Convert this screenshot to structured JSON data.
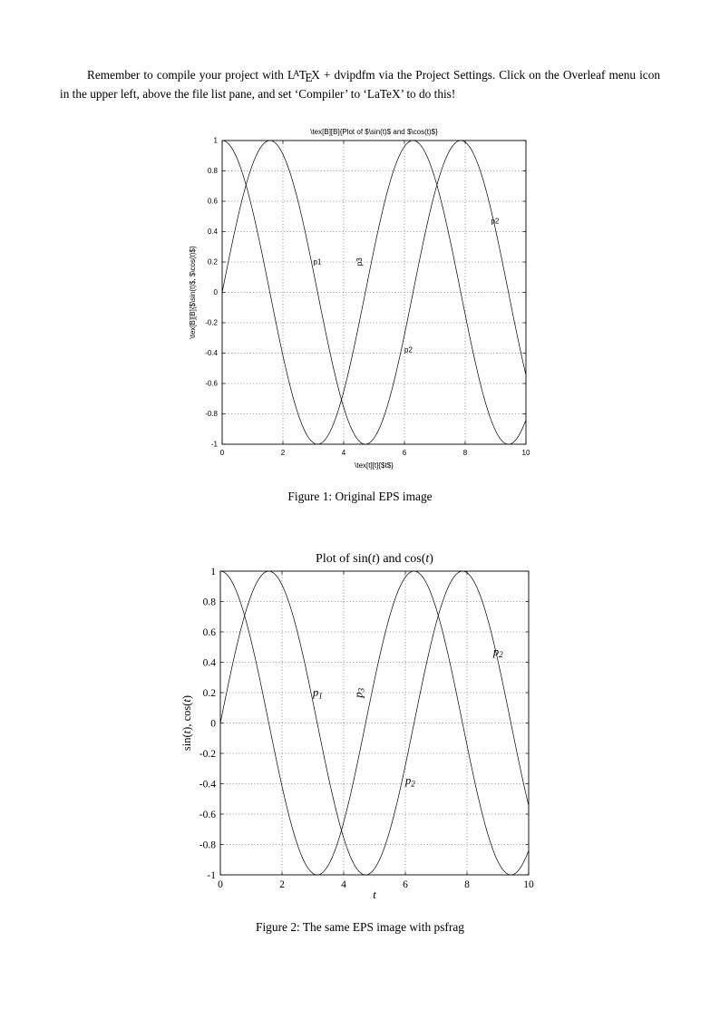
{
  "page": {
    "paragraph": {
      "part1": "Remember to compile your project with ",
      "latex_logo": {
        "l": "L",
        "a": "A",
        "t": "T",
        "e": "E",
        "x": "X"
      },
      "part2": " + dvipdfm via the Project Settings. Click on the Overleaf menu icon in the upper left, above the file list pane, and set ‘Compiler’ to ‘LaTeX’ to do this!"
    }
  },
  "figures": [
    {
      "caption": "Figure 1: Original EPS image"
    },
    {
      "caption": "Figure 2: The same EPS image with psfrag"
    }
  ],
  "chart_data": [
    {
      "type": "line",
      "font": "sans",
      "title": "\\tex[B][B]{Plot of $\\sin(t)$ and $\\cos(t)$}",
      "xlabel": "\\tex[t][t]{$t$}",
      "ylabel": "\\tex[B][B]{$\\sin(t)$, $\\cos(t)$}",
      "xlim": [
        0,
        10
      ],
      "ylim": [
        -1,
        1
      ],
      "xticks": [
        "0",
        "2",
        "4",
        "6",
        "8",
        "10"
      ],
      "yticks": [
        "-1",
        "-0.8",
        "-0.6",
        "-0.4",
        "-0.2",
        "0",
        "0.2",
        "0.4",
        "0.6",
        "0.8",
        "1"
      ],
      "grid": "dotted",
      "series": [
        {
          "name": "sin(t)",
          "fn": "sin",
          "x": [
            0,
            0.5,
            1,
            1.5,
            2,
            2.5,
            3,
            3.5,
            4,
            4.5,
            5,
            5.5,
            6,
            6.5,
            7,
            7.5,
            8,
            8.5,
            9,
            9.5,
            10
          ],
          "y": [
            0,
            0.479,
            0.841,
            0.997,
            0.909,
            0.599,
            0.141,
            -0.351,
            -0.757,
            -0.978,
            -0.959,
            -0.706,
            -0.279,
            0.215,
            0.657,
            0.938,
            0.989,
            0.798,
            0.412,
            -0.075,
            -0.544
          ]
        },
        {
          "name": "cos(t)",
          "fn": "cos",
          "x": [
            0,
            0.5,
            1,
            1.5,
            2,
            2.5,
            3,
            3.5,
            4,
            4.5,
            5,
            5.5,
            6,
            6.5,
            7,
            7.5,
            8,
            8.5,
            9,
            9.5,
            10
          ],
          "y": [
            1,
            0.878,
            0.54,
            0.071,
            -0.416,
            -0.801,
            -0.99,
            -0.937,
            -0.654,
            -0.211,
            0.284,
            0.709,
            0.96,
            0.977,
            0.754,
            0.347,
            -0.146,
            -0.602,
            -0.911,
            -0.997,
            -0.839
          ]
        }
      ],
      "annotations": [
        {
          "text": "p1",
          "x": 3.0,
          "y": 0.2,
          "rotate": 0
        },
        {
          "text": "p3",
          "x": 4.6,
          "y": 0.19,
          "rotate": -90
        },
        {
          "text": "p2",
          "x": 6.0,
          "y": -0.38,
          "rotate": 0
        },
        {
          "text": "p2",
          "x": 8.85,
          "y": 0.47,
          "rotate": 0
        }
      ]
    },
    {
      "type": "line",
      "font": "serif",
      "title": "Plot of sin(t) and cos(t)",
      "title_segments": [
        {
          "t": "Plot of sin("
        },
        {
          "t": "t",
          "i": true
        },
        {
          "t": ") and cos("
        },
        {
          "t": "t",
          "i": true
        },
        {
          "t": ")"
        }
      ],
      "xlabel": "t",
      "xlabel_segments": [
        {
          "t": "t",
          "i": true
        }
      ],
      "ylabel": "sin(t), cos(t)",
      "ylabel_segments": [
        {
          "t": "sin("
        },
        {
          "t": "t",
          "i": true
        },
        {
          "t": "), cos("
        },
        {
          "t": "t",
          "i": true
        },
        {
          "t": ")"
        }
      ],
      "xlim": [
        0,
        10
      ],
      "ylim": [
        -1,
        1
      ],
      "xticks": [
        "0",
        "2",
        "4",
        "6",
        "8",
        "10"
      ],
      "yticks": [
        "-1",
        "-0.8",
        "-0.6",
        "-0.4",
        "-0.2",
        "0",
        "0.2",
        "0.4",
        "0.6",
        "0.8",
        "1"
      ],
      "grid": "dotted",
      "series": [
        {
          "name": "sin(t)",
          "fn": "sin",
          "x": [
            0,
            0.5,
            1,
            1.5,
            2,
            2.5,
            3,
            3.5,
            4,
            4.5,
            5,
            5.5,
            6,
            6.5,
            7,
            7.5,
            8,
            8.5,
            9,
            9.5,
            10
          ],
          "y": [
            0,
            0.479,
            0.841,
            0.997,
            0.909,
            0.599,
            0.141,
            -0.351,
            -0.757,
            -0.978,
            -0.959,
            -0.706,
            -0.279,
            0.215,
            0.657,
            0.938,
            0.989,
            0.798,
            0.412,
            -0.075,
            -0.544
          ]
        },
        {
          "name": "cos(t)",
          "fn": "cos",
          "x": [
            0,
            0.5,
            1,
            1.5,
            2,
            2.5,
            3,
            3.5,
            4,
            4.5,
            5,
            5.5,
            6,
            6.5,
            7,
            7.5,
            8,
            8.5,
            9,
            9.5,
            10
          ],
          "y": [
            1,
            0.878,
            0.54,
            0.071,
            -0.416,
            -0.801,
            -0.99,
            -0.937,
            -0.654,
            -0.211,
            0.284,
            0.709,
            0.96,
            0.977,
            0.754,
            0.347,
            -0.146,
            -0.602,
            -0.911,
            -0.997,
            -0.839
          ]
        }
      ],
      "annotations": [
        {
          "text": "p",
          "sub": "1",
          "x": 3.0,
          "y": 0.2,
          "rotate": 0
        },
        {
          "text": "p",
          "sub": "3",
          "x": 4.6,
          "y": 0.19,
          "rotate": -90
        },
        {
          "text": "p",
          "sub": "2",
          "x": 6.0,
          "y": -0.38,
          "rotate": 0
        },
        {
          "text": "p",
          "sub": "2",
          "x": 8.85,
          "y": 0.47,
          "rotate": 0
        }
      ]
    }
  ]
}
